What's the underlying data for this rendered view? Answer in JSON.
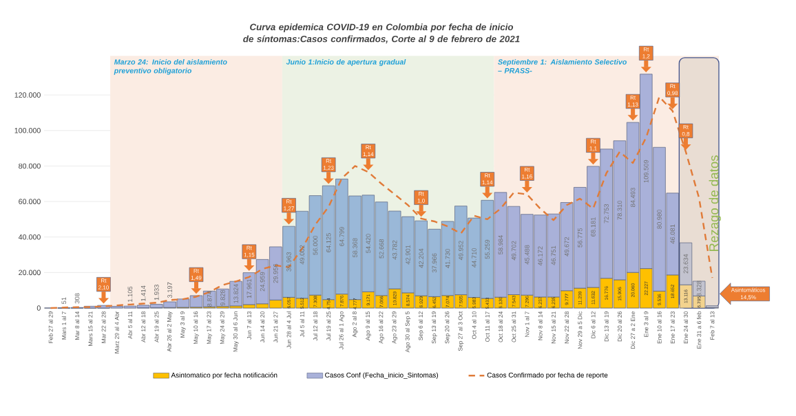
{
  "chart_data": {
    "type": "bar",
    "title": "Curva epidemica COVID-19 en Colombia  por fecha de inicio de síntomas:Casos confirmados, Corte al 9 de febrero de 2021",
    "categories": [
      "Feb 27 al 29",
      "Mars 1 al 7",
      "Mar 8 al 14",
      "Mars 15 al 21",
      "Mar 22 al 28",
      "Marz 29 al 4 Abr",
      "Abr 5 al 11",
      "Abr 12 al 18",
      "Abr 19 al 25",
      "Abr 26 al 2 May",
      "May 3 al 9",
      "May 10 al 16",
      "May 17 al 23",
      "May 24 al 29",
      "May 30 al 6 Jun",
      "Jun 7 al 13",
      "Jun 14 al 20",
      "Jun 21 al 27",
      "Jun 28 al 4 Jul",
      "Jul 5 al 11",
      "Jul 12 al 18",
      "Jul 19 al 25",
      "Jul 26 al 1 Ago",
      "Ago 2 al 8",
      "Ago 9 al 15",
      "Ago 16 al 22",
      "Ago 23 al 29",
      "Ago 30 al Sep 5",
      "Sep 6 al 12",
      "Sep 13 al 19",
      "Sep 20 al 26",
      "Sep 27 al 3 Oct",
      "Oct 4 al 10",
      "Oct 11 al 17",
      "Oct 18 al 24",
      "Oct 25 al 31",
      "Nov 1 al 7",
      "Nov 8 al 14",
      "Nov 15 al 21",
      "Nov 22 al 28",
      "Nov 29 a 5 Dic",
      "Dic 6 al 12",
      "Dic 13 al 19",
      "Dic 20 al 26",
      "Dic 27 a 2 Ene",
      "Ene 3 al 9",
      "Ene 10 al 16",
      "Ene 17 al 23",
      "Ene 24 al 30",
      "Ene 31 a 6 feb",
      "Feb 7 al 13"
    ],
    "stacked": true,
    "series": [
      {
        "name": "Asintomatico  por fecha notificación",
        "color": "#ffc000",
        "colors": [
          "#ffc000",
          "#ffc000",
          "#ffc000",
          "#ffc000",
          "#ffc000",
          "#ffc000",
          "#ffc000",
          "#ffc000",
          "#ffc000",
          "#ffc000",
          "#ffc000",
          "#ffc000",
          "#ffc000",
          "#ffc000",
          "#ffc000",
          "#ffc000",
          "#ffc000",
          "#ffc000",
          "#ffc000",
          "#ffc000",
          "#ffc000",
          "#ffc000",
          "#ffc000",
          "#ffc000",
          "#ffc000",
          "#ffc000",
          "#ffc000",
          "#ffc000",
          "#ffc000",
          "#ffc000",
          "#ffc000",
          "#ffc000",
          "#ffc000",
          "#ffc000",
          "#ffc000",
          "#ffc000",
          "#ffc000",
          "#ffc000",
          "#ffc000",
          "#ffc000",
          "#ffc000",
          "#ffc000",
          "#ffc000",
          "#ffc000",
          "#ffc000",
          "#ffc000",
          "#ffc000",
          "#ffc000",
          "#f3d38e",
          "#f3d38e",
          "#f3d38e"
        ],
        "values": [
          0,
          0,
          0,
          0,
          0,
          null,
          null,
          150,
          200,
          300,
          400,
          500,
          700,
          900,
          1200,
          1949,
          2394,
          4536,
          6057,
          5512,
          7308,
          4754,
          7876,
          4777,
          9171,
          7066,
          10829,
          8574,
          6929,
          6452,
          7074,
          7505,
          5983,
          5433,
          6130,
          7543,
          7296,
          6237,
          6235,
          9777,
          11209,
          11632,
          16776,
          15906,
          20060,
          22227,
          9536,
          18652,
          13116,
          6795,
          300
        ],
        "value_labels": [
          null,
          null,
          null,
          null,
          null,
          null,
          null,
          null,
          null,
          null,
          null,
          null,
          null,
          null,
          null,
          null,
          null,
          null,
          "6.057",
          "5.512",
          "7.308",
          "4.754",
          "7.876",
          "4.777",
          "9.171",
          "7.066",
          "10.829",
          "8.574",
          "6.929",
          "6.452",
          "7.074",
          "7.505",
          "5.983",
          "5.433",
          "6.130",
          "7.543",
          "7.296",
          "6.237",
          "6.235",
          "9.777",
          "11.209",
          "11.632",
          "16.776",
          "15.906",
          "20.060",
          "22.227",
          "9.536",
          "18.652",
          "13.116",
          "6.795",
          null
        ]
      },
      {
        "name": "Casos Conf (Fecha_inicio_Sintomas)",
        "color": "#a9b1d9",
        "colors": [
          "#a9b1d9",
          "#a9b1d9",
          "#a9b1d9",
          "#a9b1d9",
          "#a9b1d9",
          "#a9b1d9",
          "#a9b1d9",
          "#a9b1d9",
          "#a9b1d9",
          "#a9b1d9",
          "#a9b1d9",
          "#a9b1d9",
          "#a9b1d9",
          "#a9b1d9",
          "#a9b1d9",
          "#a9b1d9",
          "#a9b1d9",
          "#a9b1d9",
          "#9ab8d8",
          "#9ab8d8",
          "#9ab8d8",
          "#9ab8d8",
          "#9ab8d8",
          "#9ab8d8",
          "#9ab8d8",
          "#9ab8d8",
          "#9ab8d8",
          "#9ab8d8",
          "#9ab8d8",
          "#9ab8d8",
          "#9ab8d8",
          "#9ab8d8",
          "#9ab8d8",
          "#9ab8d8",
          "#a9b1d9",
          "#a9b1d9",
          "#a9b1d9",
          "#a9b1d9",
          "#a9b1d9",
          "#a9b1d9",
          "#a9b1d9",
          "#a9b1d9",
          "#a9b1d9",
          "#a9b1d9",
          "#a9b1d9",
          "#a9b1d9",
          "#a9b1d9",
          "#a9b1d9",
          "#c3c3cf",
          "#c3c3cf",
          "#c3c3cf"
        ],
        "values": [
          null,
          51,
          308,
          1038,
          1500,
          974,
          1105,
          1414,
          1933,
          3197,
          4700,
          6500,
          8874,
          9828,
          13824,
          17961,
          24959,
          29956,
          39963,
          49002,
          56000,
          64125,
          64799,
          58368,
          54420,
          52668,
          43782,
          42901,
          42204,
          37966,
          41730,
          49952,
          44710,
          55259,
          58984,
          49702,
          45488,
          46172,
          46751,
          49672,
          56775,
          68181,
          72753,
          78310,
          84493,
          109509,
          80980,
          46081,
          23634,
          8328,
          1000
        ],
        "value_labels": [
          null,
          "51",
          "308",
          null,
          null,
          null,
          "1.105",
          "1.414",
          "1.933",
          "3.197",
          null,
          null,
          "8.874",
          "9.828",
          "13.824",
          "17.961",
          "24.959",
          "29.956",
          "39.963",
          "49.002",
          "56.000",
          "64.125",
          "64.799",
          "58.368",
          "54.420",
          "52.668",
          "43.782",
          "42.901",
          "42.204",
          "37.966",
          "41.730",
          "49.952",
          "44.710",
          "55.259",
          "58.984",
          "49.702",
          "45.488",
          "46.172",
          "46.751",
          "49.672",
          "56.775",
          "68.181",
          "72.753",
          "78.310",
          "84.493",
          "109.509",
          "80.980",
          "46.081",
          "23.634",
          "8.328",
          null
        ]
      },
      {
        "name": "Casos Confirmado por fecha de reporte",
        "type": "line",
        "color": "#e07b39",
        "line_style": "dashed",
        "values": [
          0,
          300,
          500,
          600,
          1000,
          1500,
          2000,
          2500,
          3000,
          4500,
          5000,
          6400,
          9000,
          13000,
          15000,
          17500,
          22000,
          24000,
          23000,
          33500,
          47000,
          57000,
          73000,
          80000,
          76600,
          70000,
          64000,
          58000,
          50400,
          48800,
          46000,
          42000,
          52000,
          50000,
          56000,
          65000,
          64000,
          56000,
          49500,
          58000,
          61600,
          56000,
          76000,
          88000,
          81700,
          96000,
          119000,
          111000,
          88000,
          62000,
          17000
        ]
      }
    ],
    "ylim": [
      0,
      142000
    ],
    "yticks": [
      0,
      {
        "value": 20000,
        "label": "20.000"
      },
      {
        "value": 40000,
        "label": "40.000"
      },
      {
        "value": 60000,
        "label": "60.000"
      },
      {
        "value": 80000,
        "label": "80.000"
      },
      {
        "value": 100000,
        "label": "100.000"
      },
      {
        "value": 120000,
        "label": "120.000"
      }
    ],
    "grid": "y",
    "legend": "bottom",
    "bands": [
      {
        "axis": "x",
        "from": "Marz 29 al 4 Abr",
        "to": "Jun 21 al 27",
        "label": "Marzo 24: Inicio del aislamiento preventivo obligatorio",
        "color": "#fbece3"
      },
      {
        "axis": "x",
        "from": "Jun 28 al 4 Jul",
        "to": "Oct 11 al 17",
        "label": "Junio 1:Inicio de apertura gradual",
        "color": "#ecf2e4"
      },
      {
        "axis": "x",
        "from": "Oct 18 al 24",
        "to": "Feb 7 al 13",
        "label": "Septiembre 1: Aislamiento Selectivo – PRASS-",
        "color": "#fbece3"
      },
      {
        "axis": "x",
        "from": "Ene 24 al 30",
        "to": "Feb 7 al 13",
        "label": "Rezago de datos",
        "color": "#e9ddd3"
      }
    ],
    "annotations": [
      {
        "text": "Rt 2,10",
        "x": "Mar 22 al 28",
        "y": 1500
      },
      {
        "text": "Rt 1,49",
        "x": "May 10 al 16",
        "y": 7000
      },
      {
        "text": "Rt 1,15",
        "x": "Jun 7 al 13",
        "y": 19910
      },
      {
        "text": "Rt 1,27",
        "x": "Jun 28 al 4 Jul",
        "y": 46020
      },
      {
        "text": "Rt 1,23",
        "x": "Jul 19 al 25",
        "y": 68879
      },
      {
        "text": "Rt 1,14",
        "x": "Ago 9 al 15",
        "y": 76600
      },
      {
        "text": "Rt 1,0",
        "x": "Sep 6 al 12",
        "y": 50400
      },
      {
        "text": "Rt 1,14",
        "x": "Oct 11 al 17",
        "y": 60692
      },
      {
        "text": "Rt 1,16",
        "x": "Nov 1 al 7",
        "y": 64000
      },
      {
        "text": "Rt 1,1",
        "x": "Dic 6 al 12",
        "y": 79813
      },
      {
        "text": "Rt 1,13",
        "x": "Dic 27 a 2 Ene",
        "y": 104553
      },
      {
        "text": "Rt 1,2",
        "x": "Ene 3 al 9",
        "y": 131736
      },
      {
        "text": "Rt 0,98",
        "x": "Ene 17 al 23",
        "y": 111000
      },
      {
        "text": "Rt 0,8",
        "x": "Ene 24 al 30",
        "y": 88000
      },
      "Asintomáticos 14,5%"
    ]
  }
}
